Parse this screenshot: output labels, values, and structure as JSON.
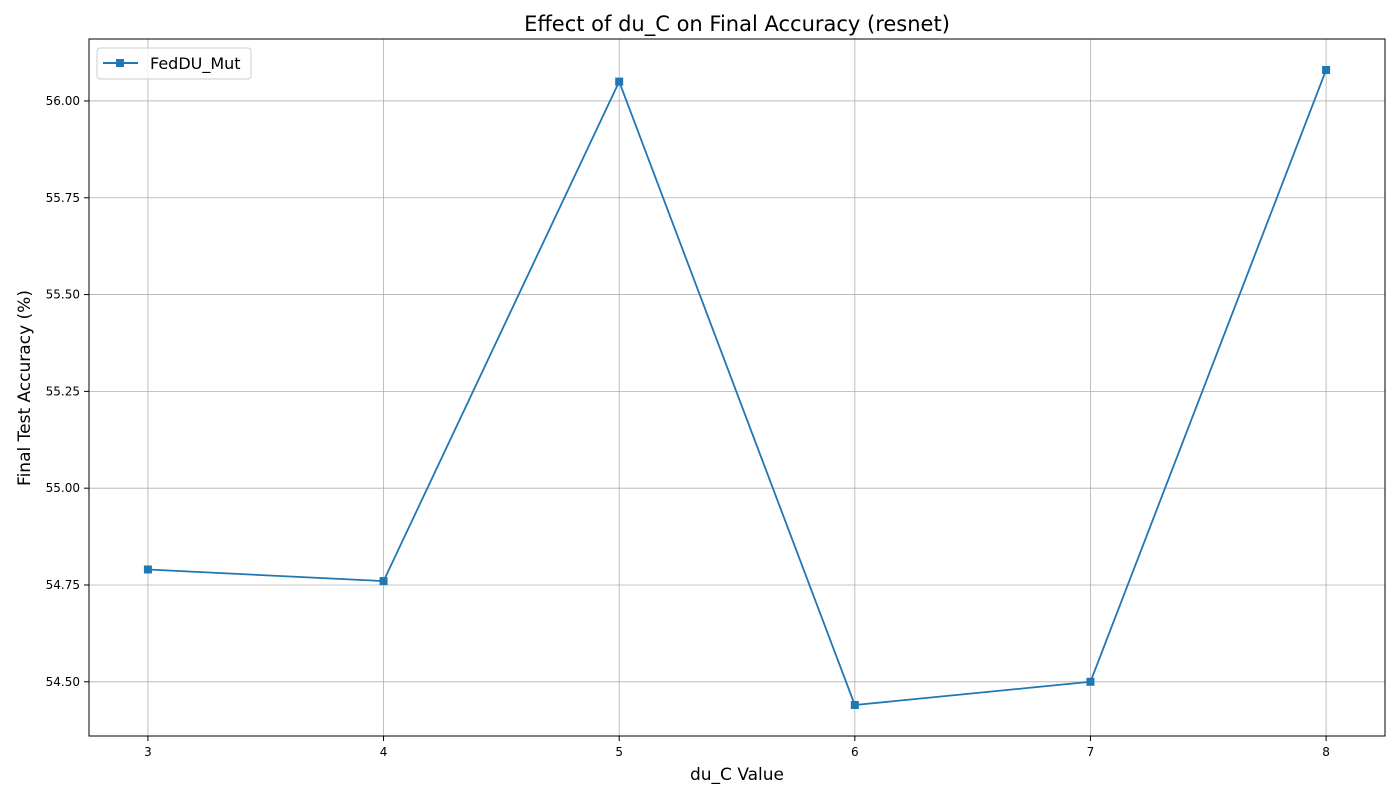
{
  "chart_data": {
    "type": "line",
    "title": "Effect of du_C on Final Accuracy (resnet)",
    "xlabel": "du_C Value",
    "ylabel": "Final Test Accuracy (%)",
    "x": [
      3,
      4,
      5,
      6,
      7,
      8
    ],
    "x_ticks": [
      "3",
      "4",
      "5",
      "6",
      "7",
      "8"
    ],
    "y_ticks": [
      54.5,
      54.75,
      55.0,
      55.25,
      55.5,
      55.75,
      56.0
    ],
    "y_tick_labels": [
      "54.50",
      "54.75",
      "55.00",
      "55.25",
      "55.50",
      "55.75",
      "56.00"
    ],
    "xlim": [
      2.75,
      8.25
    ],
    "ylim": [
      54.36,
      56.16
    ],
    "grid": true,
    "legend_position": "top-left",
    "series": [
      {
        "name": "FedDU_Mut",
        "marker": "square",
        "color": "#1f77b4",
        "values": [
          54.79,
          54.76,
          56.05,
          54.44,
          54.5,
          56.08
        ]
      }
    ]
  }
}
